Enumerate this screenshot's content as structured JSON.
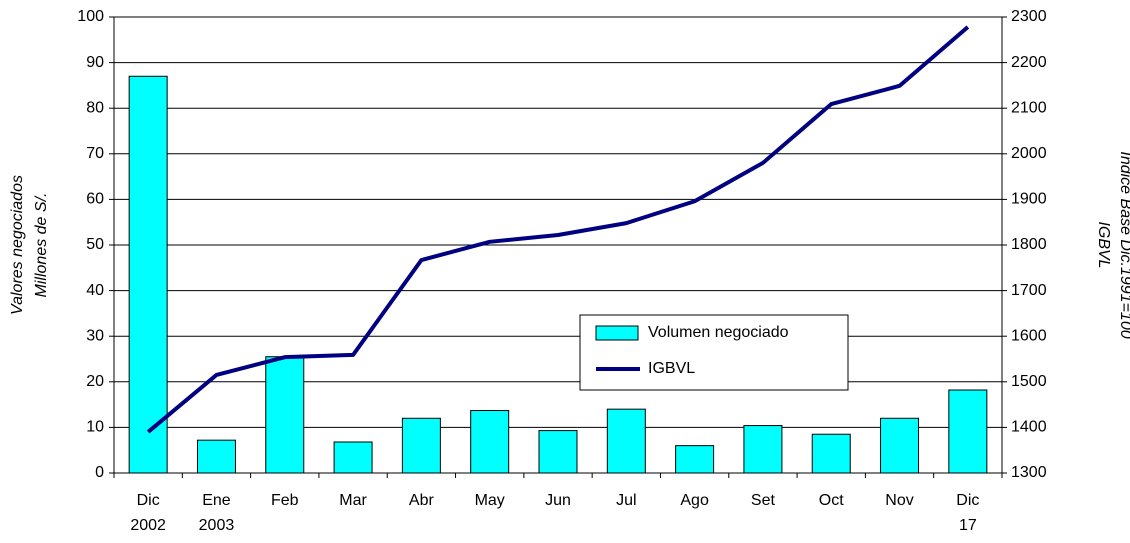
{
  "chart_data": {
    "type": "bar_line",
    "categories": [
      [
        "Dic",
        "2002"
      ],
      [
        "Ene",
        "2003"
      ],
      [
        "Feb"
      ],
      [
        "Mar"
      ],
      [
        "Abr"
      ],
      [
        "May"
      ],
      [
        "Jun"
      ],
      [
        "Jul"
      ],
      [
        "Ago"
      ],
      [
        "Set"
      ],
      [
        "Oct"
      ],
      [
        "Nov"
      ],
      [
        "Dic",
        "17"
      ]
    ],
    "y_label": [
      "Valores negociados",
      "Millones de S/."
    ],
    "y2_label": [
      "IGBVL",
      "Índice Base Dic.1991=100"
    ],
    "series": [
      {
        "name": "Volumen negociado",
        "type": "bar",
        "color": "#00ffff",
        "values": [
          87,
          7.2,
          25.5,
          6.8,
          12,
          13.7,
          9.3,
          14,
          6,
          10.4,
          8.5,
          12,
          18.2
        ]
      },
      {
        "name": "IGBVL",
        "type": "line",
        "axis": "y2",
        "color": "#000080",
        "values": [
          1390,
          1515,
          1554,
          1559,
          1767,
          1807,
          1822,
          1848,
          1896,
          1980,
          2109,
          2149,
          2278
        ]
      }
    ],
    "ylim": [
      0,
      100
    ],
    "yticks": [
      0,
      10,
      20,
      30,
      40,
      50,
      60,
      70,
      80,
      90,
      100
    ],
    "y2lim": [
      1300,
      2300
    ],
    "y2ticks": [
      1300,
      1400,
      1500,
      1600,
      1700,
      1800,
      1900,
      2000,
      2100,
      2200,
      2300
    ],
    "grid": true
  }
}
